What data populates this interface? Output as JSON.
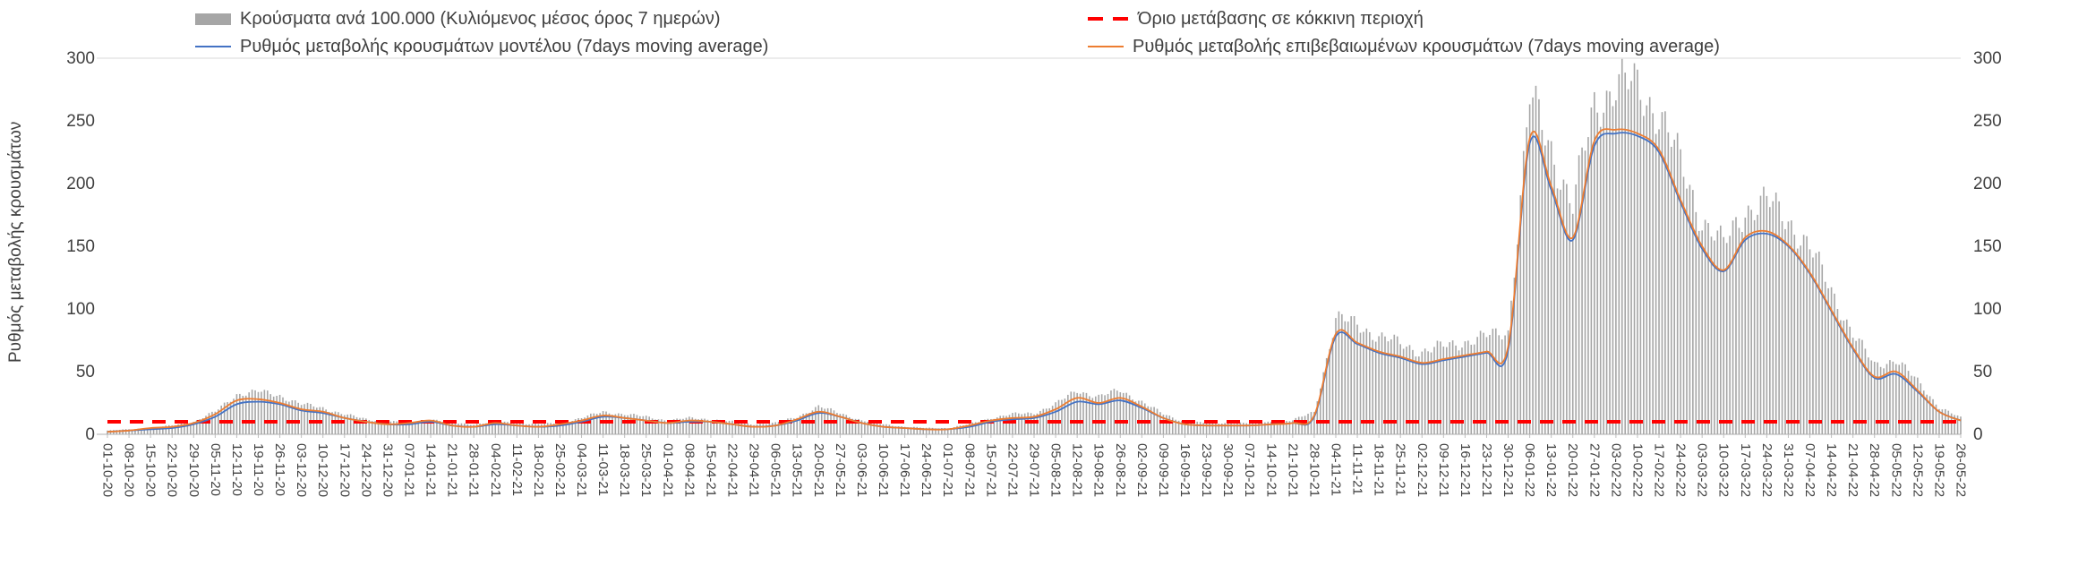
{
  "chart_data": {
    "type": "bar+line",
    "title": "",
    "xlabel": "",
    "ylabel": "Ρυθμός μεταβολής κρουσμάτων",
    "ylim": [
      0,
      300
    ],
    "yticks": [
      0,
      50,
      100,
      150,
      200,
      250,
      300
    ],
    "grid": false,
    "legend_position": "top",
    "x_tick_rotation": 90,
    "threshold": {
      "label": "Όριο μετάβασης σε κόκκινη περιοχή",
      "value": 10,
      "color": "#FF0000",
      "style": "dashed"
    },
    "categories": [
      "01-10-20",
      "08-10-20",
      "15-10-20",
      "22-10-20",
      "29-10-20",
      "05-11-20",
      "12-11-20",
      "19-11-20",
      "26-11-20",
      "03-12-20",
      "10-12-20",
      "17-12-20",
      "24-12-20",
      "31-12-20",
      "07-01-21",
      "14-01-21",
      "21-01-21",
      "28-01-21",
      "04-02-21",
      "11-02-21",
      "18-02-21",
      "25-02-21",
      "04-03-21",
      "11-03-21",
      "18-03-21",
      "25-03-21",
      "01-04-21",
      "08-04-21",
      "15-04-21",
      "22-04-21",
      "29-04-21",
      "06-05-21",
      "13-05-21",
      "20-05-21",
      "27-05-21",
      "03-06-21",
      "10-06-21",
      "17-06-21",
      "24-06-21",
      "01-07-21",
      "08-07-21",
      "15-07-21",
      "22-07-21",
      "29-07-21",
      "05-08-21",
      "12-08-21",
      "19-08-21",
      "26-08-21",
      "02-09-21",
      "09-09-21",
      "16-09-21",
      "23-09-21",
      "30-09-21",
      "07-10-21",
      "14-10-21",
      "21-10-21",
      "28-10-21",
      "04-11-21",
      "11-11-21",
      "18-11-21",
      "25-11-21",
      "02-12-21",
      "09-12-21",
      "16-12-21",
      "23-12-21",
      "30-12-21",
      "06-01-22",
      "13-01-22",
      "20-01-22",
      "27-01-22",
      "03-02-22",
      "10-02-22",
      "17-02-22",
      "24-02-22",
      "03-03-22",
      "10-03-22",
      "17-03-22",
      "24-03-22",
      "31-03-22",
      "07-04-22",
      "14-04-22",
      "21-04-22",
      "28-04-22",
      "05-05-22",
      "12-05-22",
      "19-05-22",
      "26-05-22"
    ],
    "series": [
      {
        "name": "Κρούσματα ανά 100.000 (Κυλιόμενος μέσος όρος 7 ημερών)",
        "type": "bar",
        "color": "#A6A6A6",
        "values": [
          3,
          4,
          5,
          7,
          10,
          18,
          32,
          34,
          31,
          24,
          21,
          16,
          12,
          10,
          10,
          12,
          9,
          8,
          10,
          9,
          8,
          9,
          13,
          18,
          16,
          14,
          11,
          13,
          12,
          10,
          8,
          9,
          14,
          22,
          17,
          11,
          8,
          6,
          5,
          5,
          8,
          13,
          16,
          17,
          24,
          35,
          30,
          35,
          26,
          16,
          10,
          9,
          9,
          9,
          10,
          11,
          18,
          92,
          88,
          78,
          72,
          66,
          70,
          74,
          78,
          82,
          268,
          228,
          182,
          262,
          280,
          276,
          258,
          215,
          172,
          150,
          180,
          185,
          172,
          148,
          115,
          80,
          55,
          60,
          42,
          22,
          13
        ]
      },
      {
        "name": "Ρυθμός μεταβολής κρουσμάτων μοντέλου (7days moving average)",
        "type": "line",
        "color": "#4472C4",
        "values": [
          2,
          3,
          4,
          5,
          8,
          14,
          24,
          26,
          24,
          19,
          17,
          13,
          10,
          8,
          8,
          10,
          7,
          6,
          8,
          7,
          6,
          7,
          10,
          14,
          13,
          11,
          9,
          10,
          10,
          8,
          6,
          7,
          11,
          17,
          14,
          9,
          6,
          5,
          4,
          4,
          6,
          10,
          12,
          13,
          18,
          26,
          24,
          27,
          21,
          13,
          8,
          7,
          7,
          7,
          8,
          9,
          14,
          78,
          72,
          65,
          61,
          56,
          59,
          62,
          65,
          67,
          232,
          195,
          155,
          230,
          240,
          238,
          225,
          185,
          148,
          130,
          155,
          160,
          150,
          128,
          98,
          68,
          45,
          48,
          34,
          18,
          11
        ]
      },
      {
        "name": "Ρυθμός μεταβολής επιβεβαιωμένων κρουσμάτων (7days moving average)",
        "type": "line",
        "color": "#ED7D31",
        "values": [
          2,
          3,
          5,
          6,
          9,
          16,
          27,
          28,
          25,
          20,
          18,
          13,
          10,
          8,
          9,
          11,
          7,
          6,
          9,
          7,
          6,
          8,
          11,
          15,
          13,
          11,
          9,
          11,
          10,
          8,
          6,
          7,
          12,
          18,
          14,
          9,
          6,
          5,
          4,
          4,
          7,
          11,
          13,
          14,
          20,
          29,
          25,
          29,
          22,
          13,
          8,
          7,
          7,
          7,
          8,
          9,
          15,
          80,
          73,
          66,
          62,
          57,
          60,
          63,
          66,
          70,
          236,
          198,
          157,
          234,
          243,
          240,
          227,
          187,
          150,
          131,
          157,
          162,
          151,
          129,
          99,
          69,
          46,
          50,
          35,
          18,
          11
        ]
      }
    ],
    "axis_text_color": "#404040",
    "axis_line_color": "#BFBFBF"
  }
}
